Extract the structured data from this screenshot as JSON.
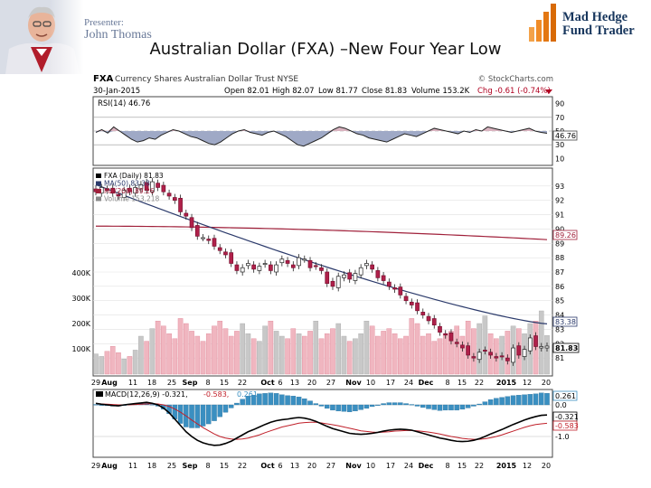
{
  "header": {
    "presenter_label": "Presenter:",
    "presenter_name": "John Thomas",
    "title": "Australian Dollar (FXA) –New Four Year Low",
    "logo_line1": "Mad Hedge",
    "logo_line2": "Fund Trader"
  },
  "chart_data": {
    "type": "candlestick",
    "symbol": "FXA",
    "security_name": "Currency Shares Australian Dollar Trust NYSE",
    "source": "© StockCharts.com",
    "date": "30-Jan-2015",
    "quote": {
      "open": "Open 82.01",
      "high": "High 82.07",
      "low": "Low 81.77",
      "close": "Close 81.83",
      "volume": "Volume 153.2K",
      "change": "Chg -0.61 (-0.74%)"
    },
    "rsi": {
      "label": "RSI(14) 46.76",
      "value": 46.76,
      "ticks": [
        "90",
        "70",
        "50",
        "30",
        "10"
      ],
      "last_label": "46.76",
      "series": [
        48,
        52,
        47,
        56,
        50,
        44,
        38,
        34,
        36,
        40,
        38,
        44,
        48,
        52,
        50,
        46,
        42,
        40,
        36,
        32,
        30,
        34,
        40,
        46,
        50,
        52,
        48,
        46,
        44,
        48,
        50,
        46,
        42,
        36,
        30,
        28,
        32,
        36,
        40,
        46,
        52,
        56,
        54,
        50,
        46,
        44,
        40,
        38,
        36,
        34,
        38,
        42,
        46,
        44,
        42,
        46,
        50,
        54,
        52,
        50,
        48,
        46,
        50,
        48,
        52,
        50,
        56,
        54,
        52,
        50,
        48,
        50,
        52,
        54,
        50,
        48,
        46.76
      ]
    },
    "price": {
      "legend": [
        {
          "label": "FXA (Daily) 81.83",
          "color": "#000000"
        },
        {
          "label": "MA(50) 83.38",
          "color": "#2b3a6b"
        },
        {
          "label": "MA(200) 89.26",
          "color": "#a0203a"
        },
        {
          "label": "Volume 153,218",
          "color": "#888888"
        }
      ],
      "ylim": [
        80,
        94
      ],
      "right_ticks": [
        "93",
        "92",
        "91",
        "90",
        "89",
        "88",
        "87",
        "86",
        "85",
        "84",
        "83",
        "82",
        "81"
      ],
      "volume_ticks": [
        "400K",
        "300K",
        "200K",
        "100K"
      ],
      "ma50_last": "83.38",
      "ma200_last": "89.26",
      "close_last": "81.83",
      "closes": [
        92.6,
        92.9,
        92.7,
        92.5,
        92.3,
        92.7,
        92.6,
        92.9,
        93.1,
        92.7,
        93.3,
        92.9,
        92.6,
        92.3,
        92.0,
        91.2,
        90.9,
        90.1,
        89.5,
        89.4,
        89.2,
        88.8,
        88.5,
        88.2,
        87.6,
        87.1,
        87.3,
        87.6,
        87.2,
        87.4,
        87.6,
        87.1,
        87.5,
        87.9,
        87.6,
        87.3,
        88.0,
        87.9,
        87.3,
        87.4,
        87.1,
        86.2,
        86.0,
        86.7,
        86.8,
        86.5,
        86.9,
        87.3,
        87.6,
        87.2,
        86.6,
        86.4,
        86.0,
        85.8,
        85.4,
        85.0,
        84.7,
        84.3,
        84.0,
        83.6,
        83.3,
        82.8,
        82.6,
        82.2,
        82.0,
        81.7,
        81.2,
        81.0,
        81.4,
        81.5,
        81.2,
        81.0,
        81.1,
        80.8,
        81.7,
        81.2,
        81.6,
        82.4,
        81.8,
        81.8,
        81.83
      ],
      "ma50_start": 93.1,
      "ma50_end": 83.38,
      "ma200_start": 90.2,
      "ma200_end": 89.26,
      "volumes_k": [
        80,
        70,
        90,
        110,
        85,
        60,
        70,
        95,
        150,
        130,
        180,
        210,
        190,
        160,
        140,
        220,
        200,
        170,
        150,
        130,
        160,
        190,
        210,
        180,
        150,
        170,
        200,
        160,
        140,
        130,
        190,
        210,
        170,
        150,
        140,
        180,
        160,
        150,
        170,
        210,
        140,
        160,
        180,
        200,
        150,
        130,
        140,
        160,
        210,
        190,
        150,
        170,
        180,
        160,
        140,
        150,
        220,
        200,
        150,
        160,
        130,
        140,
        160,
        170,
        190,
        150,
        210,
        180,
        200,
        230,
        160,
        140,
        150,
        170,
        190,
        180,
        160,
        200,
        210,
        250,
        153
      ]
    },
    "x_ticks": [
      "29",
      "Aug",
      "11",
      "18",
      "25",
      "Sep",
      "8",
      "15",
      "22",
      "Oct",
      "6",
      "13",
      "20",
      "27",
      "Nov",
      "10",
      "17",
      "24",
      "Dec",
      "8",
      "15",
      "22",
      "2015",
      "12",
      "20"
    ],
    "macd": {
      "label": "MACD(12,26,9) -0.321, -0.583, 0.261",
      "label_part1": "MACD(12,26,9) -0.321,",
      "label_part2": "-0.583,",
      "label_part3": "0.261",
      "ticks": [
        "0.0",
        "-1.0"
      ],
      "last_labels": [
        "0.261",
        "-0.321",
        "-0.583"
      ],
      "macd": [
        0.05,
        0.02,
        0.0,
        -0.02,
        -0.03,
        0.0,
        0.02,
        0.04,
        0.06,
        0.08,
        0.05,
        0.0,
        -0.1,
        -0.25,
        -0.45,
        -0.65,
        -0.85,
        -1.0,
        -1.12,
        -1.2,
        -1.25,
        -1.28,
        -1.27,
        -1.22,
        -1.15,
        -1.05,
        -0.95,
        -0.85,
        -0.78,
        -0.7,
        -0.62,
        -0.55,
        -0.5,
        -0.47,
        -0.45,
        -0.42,
        -0.4,
        -0.42,
        -0.46,
        -0.52,
        -0.6,
        -0.68,
        -0.75,
        -0.8,
        -0.85,
        -0.9,
        -0.92,
        -0.93,
        -0.92,
        -0.9,
        -0.87,
        -0.83,
        -0.8,
        -0.78,
        -0.77,
        -0.78,
        -0.8,
        -0.85,
        -0.9,
        -0.95,
        -1.0,
        -1.05,
        -1.08,
        -1.12,
        -1.15,
        -1.16,
        -1.15,
        -1.12,
        -1.07,
        -1.0,
        -0.92,
        -0.85,
        -0.78,
        -0.7,
        -0.62,
        -0.55,
        -0.48,
        -0.42,
        -0.37,
        -0.33,
        -0.321
      ],
      "signal": [
        0.04,
        0.03,
        0.02,
        0.01,
        0.0,
        0.0,
        0.0,
        0.01,
        0.02,
        0.03,
        0.04,
        0.03,
        0.0,
        -0.05,
        -0.13,
        -0.23,
        -0.35,
        -0.48,
        -0.6,
        -0.72,
        -0.82,
        -0.92,
        -1.0,
        -1.05,
        -1.08,
        -1.09,
        -1.08,
        -1.05,
        -1.0,
        -0.95,
        -0.88,
        -0.82,
        -0.76,
        -0.7,
        -0.66,
        -0.62,
        -0.58,
        -0.56,
        -0.55,
        -0.55,
        -0.57,
        -0.6,
        -0.63,
        -0.66,
        -0.7,
        -0.74,
        -0.78,
        -0.82,
        -0.84,
        -0.86,
        -0.87,
        -0.86,
        -0.85,
        -0.83,
        -0.82,
        -0.81,
        -0.81,
        -0.82,
        -0.84,
        -0.86,
        -0.89,
        -0.92,
        -0.96,
        -1.0,
        -1.03,
        -1.06,
        -1.08,
        -1.09,
        -1.09,
        -1.07,
        -1.04,
        -1.0,
        -0.95,
        -0.89,
        -0.83,
        -0.77,
        -0.71,
        -0.66,
        -0.62,
        -0.6,
        -0.583
      ]
    }
  }
}
